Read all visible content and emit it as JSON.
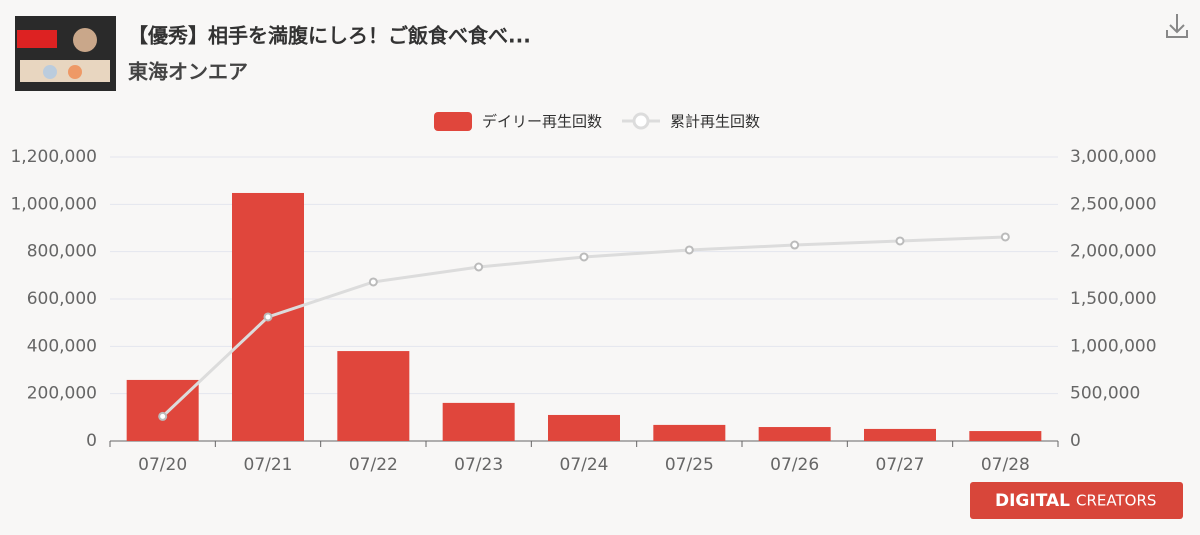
{
  "header": {
    "title": "【優秀】相手を満腹にしろ！ご飯食べ食べ...",
    "channel": "東海オンエア"
  },
  "chart_data": {
    "type": "bar",
    "categories": [
      "07/20",
      "07/21",
      "07/22",
      "07/23",
      "07/24",
      "07/25",
      "07/26",
      "07/27",
      "07/28"
    ],
    "series": [
      {
        "name": "デイリー再生回数",
        "type": "bar",
        "color": "#e0463c",
        "values": [
          258000,
          1048000,
          380000,
          161000,
          110000,
          68000,
          59000,
          51000,
          42000
        ]
      },
      {
        "name": "累計再生回数",
        "type": "line",
        "axis": "y2",
        "color": "#dcdcdc",
        "values": [
          260000,
          1310000,
          1680000,
          1838000,
          1944000,
          2018000,
          2070000,
          2113000,
          2155000
        ]
      }
    ],
    "ylim": [
      0,
      1200000
    ],
    "yticks": [
      0,
      {
        "value": 200000,
        "label": "200,000"
      },
      {
        "value": 400000,
        "label": "400,000"
      },
      {
        "value": 600000,
        "label": "600,000"
      },
      {
        "value": 800000,
        "label": "800,000"
      },
      {
        "value": 1000000,
        "label": "1,000,000"
      },
      {
        "value": 1200000,
        "label": "1,200,000"
      }
    ],
    "y2lim": [
      0,
      3000000
    ],
    "y2ticks": [
      0,
      {
        "value": 500000,
        "label": "500,000"
      },
      {
        "value": 1000000,
        "label": "1,000,000"
      },
      {
        "value": 1500000,
        "label": "1,500,000"
      },
      {
        "value": 2000000,
        "label": "2,000,000"
      },
      {
        "value": 2500000,
        "label": "2,500,000"
      },
      {
        "value": 3000000,
        "label": "3,000,000"
      }
    ],
    "grid": true,
    "legend": "top"
  },
  "watermark": {
    "brand": "DIGITAL",
    "suffix": "CREATORS"
  }
}
